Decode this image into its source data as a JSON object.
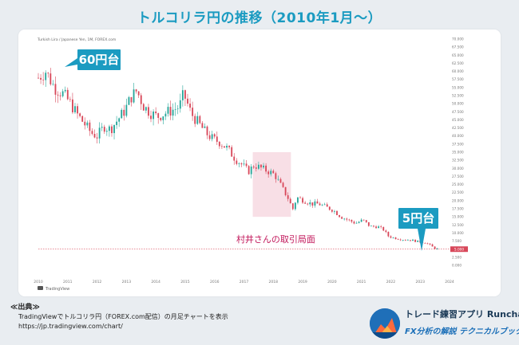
{
  "title": "トルコリラ円の推移（2010年1月〜）",
  "chart_data": {
    "type": "candlestick",
    "header_text": "Turkish Lira / Japanese Yen, 1M, FOREX.com",
    "watermark": "TradingView",
    "x_ticks": [
      "2010",
      "2011",
      "2012",
      "2013",
      "2014",
      "2015",
      "2016",
      "2017",
      "2018",
      "2019",
      "2020",
      "2021",
      "2022",
      "2023",
      "2024"
    ],
    "y_ticks": [
      "70.000",
      "67.500",
      "65.000",
      "62.500",
      "60.000",
      "57.500",
      "55.000",
      "52.500",
      "50.000",
      "47.500",
      "45.000",
      "42.500",
      "40.000",
      "37.500",
      "35.000",
      "32.500",
      "30.000",
      "27.500",
      "25.000",
      "22.500",
      "20.000",
      "17.500",
      "15.000",
      "12.500",
      "10.000",
      "7.500",
      "5.000",
      "2.500",
      "0.000"
    ],
    "ylim": [
      0,
      70
    ],
    "last_price_label": "5.000",
    "last_price": 5.0,
    "close_path": [
      [
        2010.0,
        58
      ],
      [
        2010.25,
        60
      ],
      [
        2010.55,
        55
      ],
      [
        2010.85,
        53
      ],
      [
        2011.1,
        50
      ],
      [
        2011.3,
        47
      ],
      [
        2011.55,
        44
      ],
      [
        2011.8,
        41
      ],
      [
        2012.0,
        40
      ],
      [
        2012.25,
        43
      ],
      [
        2012.45,
        42
      ],
      [
        2012.7,
        45
      ],
      [
        2012.95,
        48
      ],
      [
        2013.15,
        52
      ],
      [
        2013.35,
        54
      ],
      [
        2013.6,
        49
      ],
      [
        2013.85,
        47
      ],
      [
        2014.05,
        46
      ],
      [
        2014.3,
        47
      ],
      [
        2014.55,
        48
      ],
      [
        2014.8,
        49
      ],
      [
        2014.95,
        53
      ],
      [
        2015.2,
        47
      ],
      [
        2015.45,
        44
      ],
      [
        2015.7,
        41
      ],
      [
        2015.95,
        39
      ],
      [
        2016.2,
        38
      ],
      [
        2016.45,
        36
      ],
      [
        2016.7,
        33
      ],
      [
        2016.95,
        31
      ],
      [
        2017.15,
        29
      ],
      [
        2017.35,
        31
      ],
      [
        2017.6,
        30
      ],
      [
        2017.85,
        29
      ],
      [
        2018.05,
        28
      ],
      [
        2018.3,
        24
      ],
      [
        2018.55,
        20
      ],
      [
        2018.65,
        17
      ],
      [
        2018.8,
        21
      ],
      [
        2019.05,
        20
      ],
      [
        2019.3,
        19
      ],
      [
        2019.55,
        19
      ],
      [
        2019.8,
        18
      ],
      [
        2020.05,
        17
      ],
      [
        2020.3,
        15
      ],
      [
        2020.55,
        14
      ],
      [
        2020.8,
        13
      ],
      [
        2021.05,
        14
      ],
      [
        2021.3,
        12
      ],
      [
        2021.55,
        12
      ],
      [
        2021.75,
        11
      ],
      [
        2021.92,
        9
      ],
      [
        2022.1,
        8.5
      ],
      [
        2022.4,
        8
      ],
      [
        2022.7,
        7.8
      ],
      [
        2022.95,
        7.3
      ],
      [
        2023.2,
        7
      ],
      [
        2023.45,
        5.5
      ],
      [
        2023.6,
        5
      ]
    ],
    "annotations": [
      {
        "label": "60円台"
      },
      {
        "label": "5円台"
      },
      {
        "label": "村井さんの取引局面",
        "x_range": [
          2017.3,
          2018.6
        ]
      }
    ]
  },
  "source": {
    "title": "≪出典≫",
    "line": "TradingViewでトルコリラ円（FOREX.com配信）の月足チャートを表示",
    "url": "https://jp.tradingview.com/chart/"
  },
  "brand": {
    "line1": "トレード練習アプリ Runcha",
    "line2": "FX分析の解説 テクニカルブック"
  },
  "colors": {
    "up": "#26a69a",
    "down": "#d8485a",
    "accent": "#1b9bc1",
    "highlight": "#f7d9e2"
  }
}
